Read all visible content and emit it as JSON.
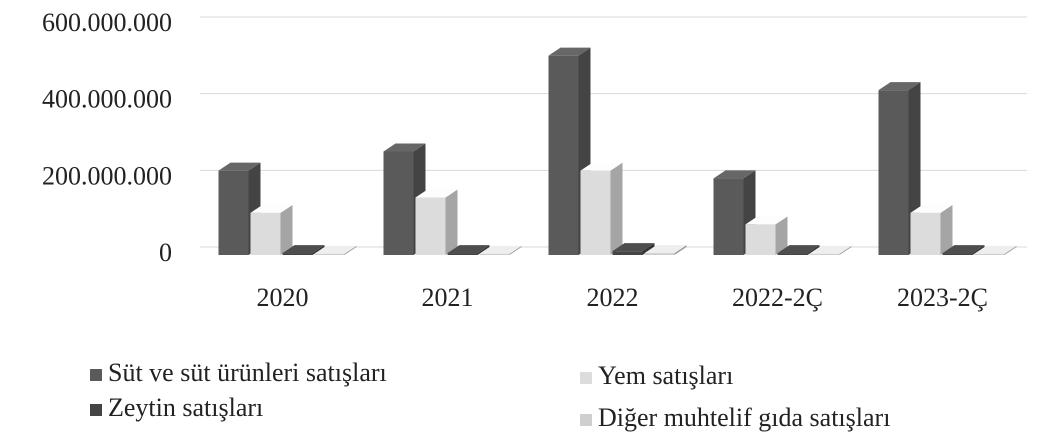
{
  "chart_data": {
    "type": "bar",
    "categories": [
      "2020",
      "2021",
      "2022",
      "2022-2Ç",
      "2023-2Ç"
    ],
    "series": [
      {
        "name": "Süt ve süt ürünleri satışları",
        "color": "#5a5a5a",
        "values": [
          220000000,
          270000000,
          520000000,
          200000000,
          430000000
        ]
      },
      {
        "name": "Yem satışları",
        "color": "#dcdcdc",
        "values": [
          110000000,
          150000000,
          220000000,
          80000000,
          110000000
        ]
      },
      {
        "name": "Zeytin satışları",
        "color": "#444444",
        "values": [
          5000000,
          5000000,
          10000000,
          5000000,
          5000000
        ]
      },
      {
        "name": "Diğer muhtelif gıda satışları",
        "color": "#cfcfcf",
        "values": [
          3000000,
          3000000,
          5000000,
          3000000,
          3000000
        ]
      }
    ],
    "ylim": [
      0,
      600000000
    ],
    "yticks": [
      0,
      {
        "value": 200000000,
        "label": "200.000.000"
      },
      {
        "value": 400000000,
        "label": "400.000.000"
      },
      {
        "value": 600000000,
        "label": "600.000.000"
      }
    ],
    "grid": true,
    "legend": "bottom"
  }
}
